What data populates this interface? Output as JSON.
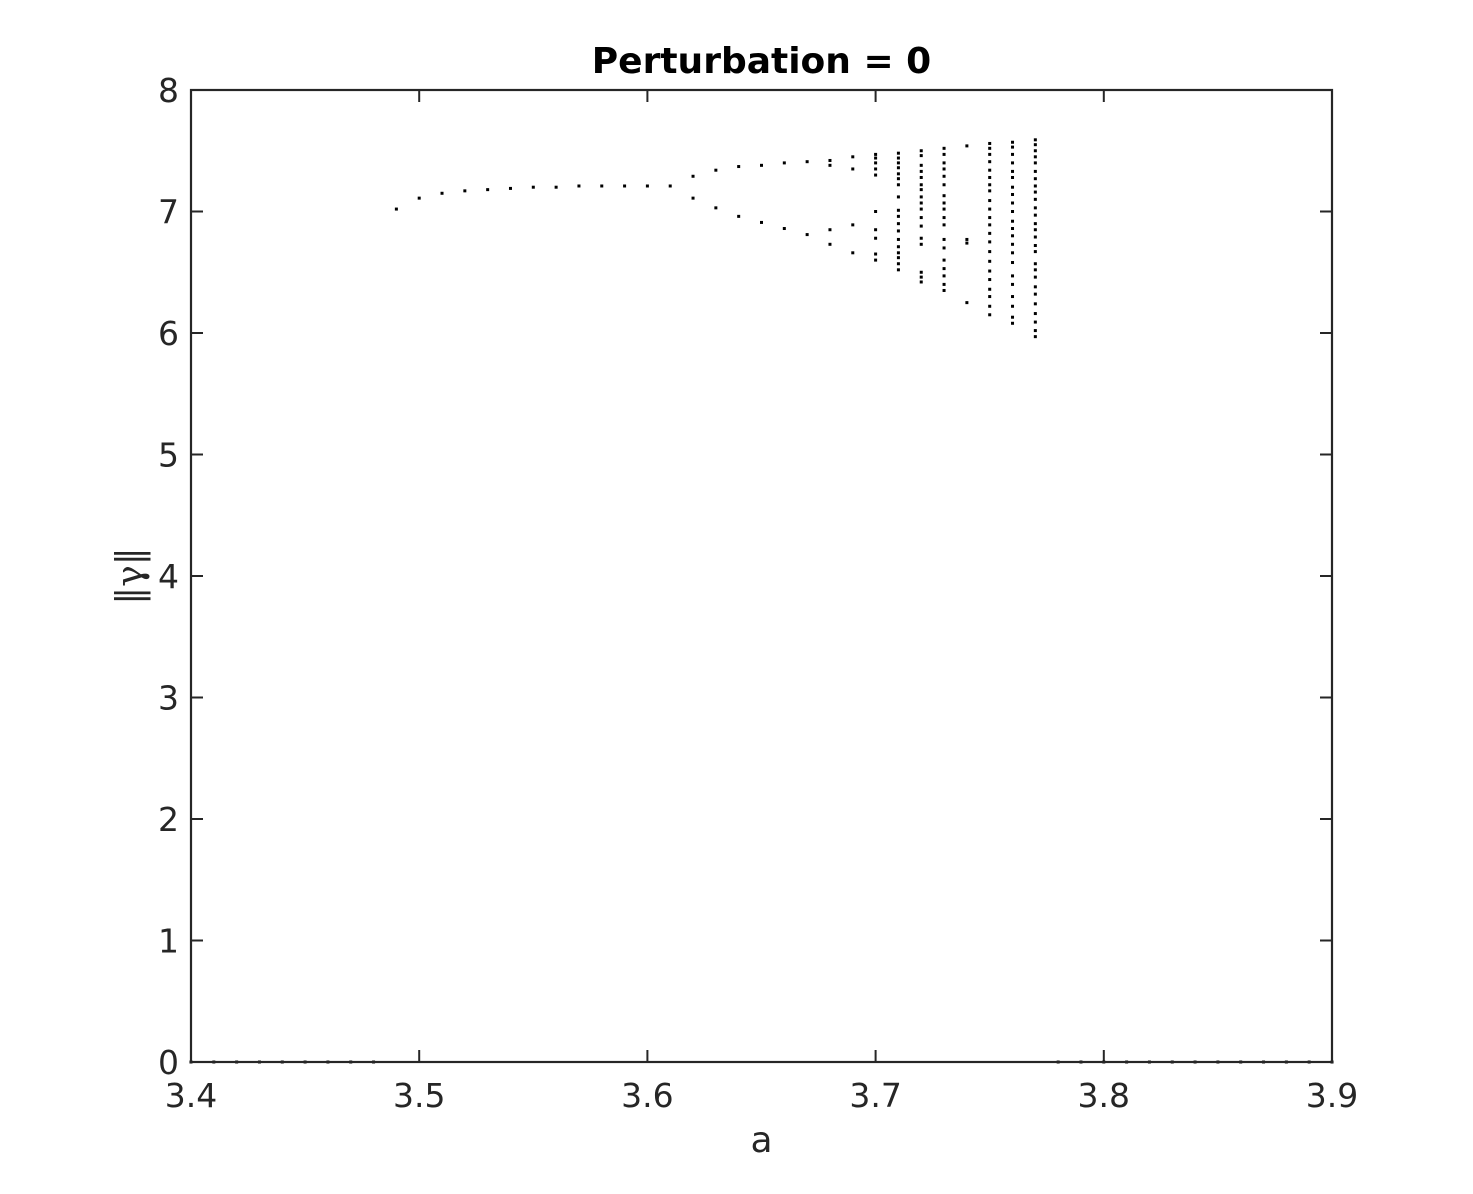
{
  "chart_data": {
    "type": "scatter",
    "title": "Perturbation = 0",
    "xlabel": "a",
    "ylabel": "‖γ‖",
    "xlim": [
      3.4,
      3.9
    ],
    "ylim": [
      0,
      8
    ],
    "xticks": [
      "3.4",
      "3.5",
      "3.6",
      "3.7",
      "3.8",
      "3.9"
    ],
    "yticks": [
      "0",
      "1",
      "2",
      "3",
      "4",
      "5",
      "6",
      "7",
      "8"
    ],
    "grid": false,
    "marker_color": "#000000",
    "series": [
      {
        "points": [
          [
            3.4,
            0
          ],
          [
            3.41,
            0
          ],
          [
            3.42,
            0
          ],
          [
            3.43,
            0
          ],
          [
            3.44,
            0
          ],
          [
            3.45,
            0
          ],
          [
            3.46,
            0
          ],
          [
            3.47,
            0
          ],
          [
            3.48,
            0
          ],
          [
            3.49,
            7.02
          ],
          [
            3.5,
            7.11
          ],
          [
            3.51,
            7.15
          ],
          [
            3.52,
            7.17
          ],
          [
            3.53,
            7.18
          ],
          [
            3.54,
            7.19
          ],
          [
            3.55,
            7.2
          ],
          [
            3.56,
            7.2
          ],
          [
            3.57,
            7.21
          ],
          [
            3.58,
            7.21
          ],
          [
            3.59,
            7.21
          ],
          [
            3.6,
            7.21
          ],
          [
            3.61,
            7.21
          ],
          [
            3.62,
            7.29
          ],
          [
            3.62,
            7.11
          ],
          [
            3.63,
            7.34
          ],
          [
            3.63,
            7.03
          ],
          [
            3.64,
            7.37
          ],
          [
            3.64,
            6.96
          ],
          [
            3.65,
            7.38
          ],
          [
            3.65,
            6.91
          ],
          [
            3.66,
            7.4
          ],
          [
            3.66,
            6.86
          ],
          [
            3.67,
            7.41
          ],
          [
            3.67,
            6.81
          ],
          [
            3.68,
            7.42
          ],
          [
            3.68,
            7.38
          ],
          [
            3.68,
            6.85
          ],
          [
            3.68,
            6.73
          ],
          [
            3.69,
            7.45
          ],
          [
            3.69,
            7.35
          ],
          [
            3.69,
            6.89
          ],
          [
            3.69,
            6.66
          ],
          [
            3.7,
            7.47
          ],
          [
            3.7,
            7.44
          ],
          [
            3.7,
            7.4
          ],
          [
            3.7,
            7.35
          ],
          [
            3.7,
            7.3
          ],
          [
            3.7,
            7.0
          ],
          [
            3.7,
            6.85
          ],
          [
            3.7,
            6.78
          ],
          [
            3.7,
            6.65
          ],
          [
            3.7,
            6.6
          ],
          [
            3.71,
            7.48
          ],
          [
            3.71,
            7.44
          ],
          [
            3.71,
            7.4
          ],
          [
            3.71,
            7.36
          ],
          [
            3.71,
            7.31
          ],
          [
            3.71,
            7.27
          ],
          [
            3.71,
            7.22
          ],
          [
            3.71,
            7.12
          ],
          [
            3.71,
            7.01
          ],
          [
            3.71,
            6.96
          ],
          [
            3.71,
            6.9
          ],
          [
            3.71,
            6.84
          ],
          [
            3.71,
            6.77
          ],
          [
            3.71,
            6.71
          ],
          [
            3.71,
            6.66
          ],
          [
            3.71,
            6.62
          ],
          [
            3.71,
            6.57
          ],
          [
            3.71,
            6.52
          ],
          [
            3.72,
            7.5
          ],
          [
            3.72,
            7.46
          ],
          [
            3.72,
            7.38
          ],
          [
            3.72,
            7.33
          ],
          [
            3.72,
            7.28
          ],
          [
            3.72,
            7.22
          ],
          [
            3.72,
            7.18
          ],
          [
            3.72,
            7.12
          ],
          [
            3.72,
            7.07
          ],
          [
            3.72,
            7.02
          ],
          [
            3.72,
            6.95
          ],
          [
            3.72,
            6.88
          ],
          [
            3.72,
            6.78
          ],
          [
            3.72,
            6.73
          ],
          [
            3.72,
            6.5
          ],
          [
            3.72,
            6.46
          ],
          [
            3.72,
            6.42
          ],
          [
            3.73,
            7.52
          ],
          [
            3.73,
            7.47
          ],
          [
            3.73,
            7.4
          ],
          [
            3.73,
            7.35
          ],
          [
            3.73,
            7.29
          ],
          [
            3.73,
            7.22
          ],
          [
            3.73,
            7.13
          ],
          [
            3.73,
            7.07
          ],
          [
            3.73,
            7.02
          ],
          [
            3.73,
            6.95
          ],
          [
            3.73,
            6.89
          ],
          [
            3.73,
            6.77
          ],
          [
            3.73,
            6.7
          ],
          [
            3.73,
            6.6
          ],
          [
            3.73,
            6.53
          ],
          [
            3.73,
            6.47
          ],
          [
            3.73,
            6.4
          ],
          [
            3.73,
            6.35
          ],
          [
            3.74,
            7.54
          ],
          [
            3.74,
            6.77
          ],
          [
            3.74,
            6.74
          ],
          [
            3.74,
            6.25
          ],
          [
            3.75,
            7.56
          ],
          [
            3.75,
            7.52
          ],
          [
            3.75,
            7.47
          ],
          [
            3.75,
            7.41
          ],
          [
            3.75,
            7.34
          ],
          [
            3.75,
            7.28
          ],
          [
            3.75,
            7.22
          ],
          [
            3.75,
            7.17
          ],
          [
            3.75,
            7.09
          ],
          [
            3.75,
            7.02
          ],
          [
            3.75,
            6.95
          ],
          [
            3.75,
            6.89
          ],
          [
            3.75,
            6.82
          ],
          [
            3.75,
            6.75
          ],
          [
            3.75,
            6.67
          ],
          [
            3.75,
            6.59
          ],
          [
            3.75,
            6.51
          ],
          [
            3.75,
            6.44
          ],
          [
            3.75,
            6.36
          ],
          [
            3.75,
            6.3
          ],
          [
            3.75,
            6.22
          ],
          [
            3.75,
            6.15
          ],
          [
            3.76,
            7.57
          ],
          [
            3.76,
            7.53
          ],
          [
            3.76,
            7.47
          ],
          [
            3.76,
            7.4
          ],
          [
            3.76,
            7.33
          ],
          [
            3.76,
            7.28
          ],
          [
            3.76,
            7.2
          ],
          [
            3.76,
            7.14
          ],
          [
            3.76,
            7.07
          ],
          [
            3.76,
            7.0
          ],
          [
            3.76,
            6.92
          ],
          [
            3.76,
            6.86
          ],
          [
            3.76,
            6.8
          ],
          [
            3.76,
            6.73
          ],
          [
            3.76,
            6.66
          ],
          [
            3.76,
            6.58
          ],
          [
            3.76,
            6.47
          ],
          [
            3.76,
            6.4
          ],
          [
            3.76,
            6.3
          ],
          [
            3.76,
            6.22
          ],
          [
            3.76,
            6.13
          ],
          [
            3.76,
            6.08
          ],
          [
            3.77,
            7.59
          ],
          [
            3.77,
            7.55
          ],
          [
            3.77,
            7.5
          ],
          [
            3.77,
            7.45
          ],
          [
            3.77,
            7.4
          ],
          [
            3.77,
            7.33
          ],
          [
            3.77,
            7.27
          ],
          [
            3.77,
            7.21
          ],
          [
            3.77,
            7.16
          ],
          [
            3.77,
            7.1
          ],
          [
            3.77,
            7.03
          ],
          [
            3.77,
            6.97
          ],
          [
            3.77,
            6.9
          ],
          [
            3.77,
            6.85
          ],
          [
            3.77,
            6.79
          ],
          [
            3.77,
            6.72
          ],
          [
            3.77,
            6.67
          ],
          [
            3.77,
            6.57
          ],
          [
            3.77,
            6.52
          ],
          [
            3.77,
            6.46
          ],
          [
            3.77,
            6.38
          ],
          [
            3.77,
            6.32
          ],
          [
            3.77,
            6.24
          ],
          [
            3.77,
            6.16
          ],
          [
            3.77,
            6.09
          ],
          [
            3.77,
            6.02
          ],
          [
            3.77,
            5.97
          ],
          [
            3.78,
            0
          ],
          [
            3.79,
            0
          ],
          [
            3.8,
            0
          ],
          [
            3.81,
            0
          ],
          [
            3.82,
            0
          ],
          [
            3.83,
            0
          ],
          [
            3.84,
            0
          ],
          [
            3.85,
            0
          ],
          [
            3.86,
            0
          ],
          [
            3.87,
            0
          ],
          [
            3.88,
            0
          ],
          [
            3.89,
            0
          ],
          [
            3.9,
            0
          ]
        ]
      }
    ]
  }
}
